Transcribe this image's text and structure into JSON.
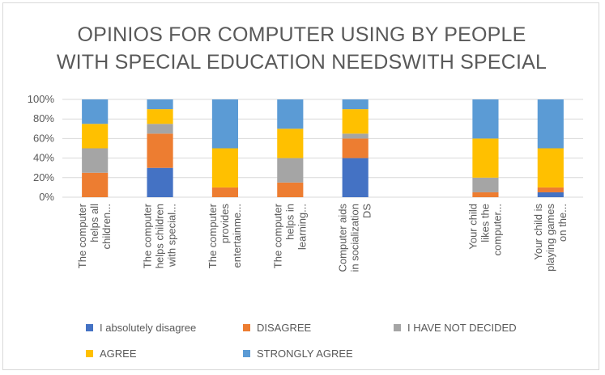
{
  "chart_data": {
    "type": "bar",
    "stacked": "percent",
    "title_lines": [
      "OPINIOS  FOR COMPUTER USING BY PEOPLE",
      "WITH SPECIAL EDUCATION NEEDSWITH SPECIAL"
    ],
    "categories": [
      [
        "The computer",
        "helps all",
        "children..."
      ],
      [
        "The computer",
        "helps children",
        "with special..."
      ],
      [
        "The computer",
        "provides",
        "entertainme..."
      ],
      [
        "The computer",
        "helps in",
        "learning..."
      ],
      [
        "Computer aids",
        "in socialization",
        "DS"
      ],
      [],
      [
        "Your child",
        "likes the",
        "computer..."
      ],
      [
        "Your child is",
        "playing games",
        "on the..."
      ]
    ],
    "series": [
      {
        "name": "I absolutely disagree",
        "color": "#4472c4",
        "values": [
          0,
          30,
          0,
          0,
          40,
          0,
          0,
          5
        ]
      },
      {
        "name": "DISAGREE",
        "color": "#ed7d31",
        "values": [
          25,
          35,
          10,
          15,
          20,
          0,
          5,
          5
        ]
      },
      {
        "name": "I HAVE NOT DECIDED",
        "color": "#a5a5a5",
        "values": [
          25,
          10,
          0,
          25,
          5,
          0,
          15,
          0
        ]
      },
      {
        "name": "AGREE",
        "color": "#ffc000",
        "values": [
          25,
          15,
          40,
          30,
          25,
          0,
          40,
          40
        ]
      },
      {
        "name": "STRONGLY AGREE",
        "color": "#5b9bd5",
        "values": [
          25,
          10,
          50,
          30,
          10,
          0,
          40,
          50
        ]
      }
    ],
    "ylim": [
      0,
      100
    ],
    "yticks": [
      "0%",
      "20%",
      "40%",
      "60%",
      "80%",
      "100%"
    ],
    "grid": true,
    "legend_position": "bottom"
  }
}
